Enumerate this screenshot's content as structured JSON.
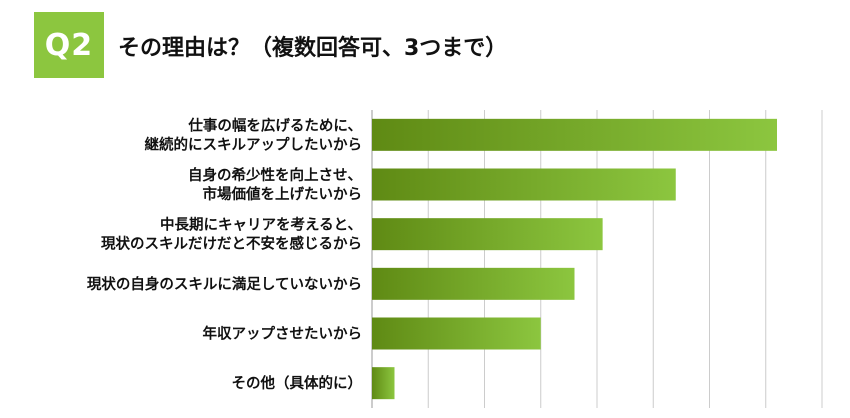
{
  "header": {
    "badge": "Q2",
    "title": "その理由は？（複数回答可、3つまで）"
  },
  "colors": {
    "badge": "#8cc63f",
    "bar_start": "#5f8a14",
    "bar_end": "#8cc63f",
    "grid": "#cccccc",
    "axis": "#999999"
  },
  "chart_data": {
    "type": "bar",
    "orientation": "horizontal",
    "categories": [
      [
        "仕事の幅を広げるために、",
        "継続的にスキルアップしたいから"
      ],
      [
        "自身の希少性を向上させ、",
        "市場価値を上げたいから"
      ],
      [
        "中長期にキャリアを考えると、",
        "現状のスキルだけだと不安を感じるから"
      ],
      [
        "現状の自身のスキルに満足していないから"
      ],
      [
        "年収アップさせたいから"
      ],
      [
        "その他（具体的に）"
      ]
    ],
    "values": [
      72,
      54,
      41,
      36,
      30,
      4
    ],
    "xlim": [
      0,
      80
    ],
    "grid": true,
    "legend": "none"
  }
}
